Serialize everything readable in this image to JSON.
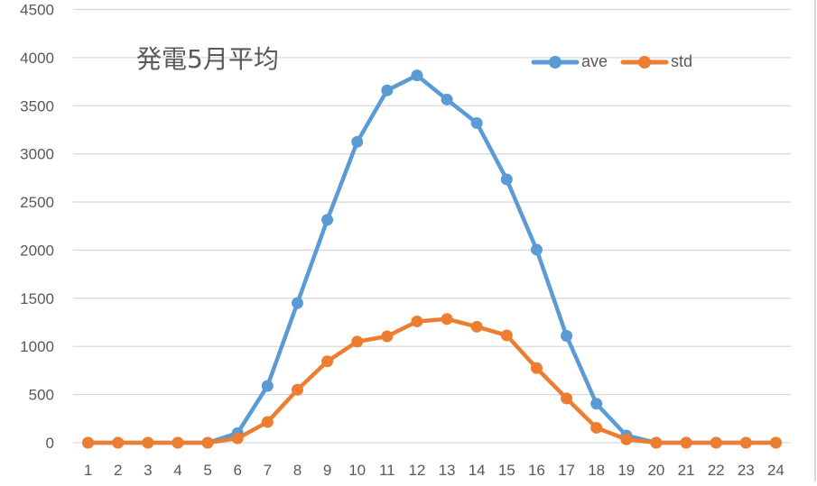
{
  "chart_data": {
    "type": "line",
    "title": "発電5月平均",
    "xlabel": "",
    "ylabel": "",
    "categories": [
      "1",
      "2",
      "3",
      "4",
      "5",
      "6",
      "7",
      "8",
      "9",
      "10",
      "11",
      "12",
      "13",
      "14",
      "15",
      "16",
      "17",
      "18",
      "19",
      "20",
      "21",
      "22",
      "23",
      "24"
    ],
    "series": [
      {
        "name": "ave",
        "color": "#5b9bd5",
        "values": [
          0,
          0,
          0,
          0,
          0,
          100,
          590,
          1450,
          2315,
          3125,
          3660,
          3815,
          3565,
          3320,
          2735,
          2005,
          1110,
          405,
          75,
          0,
          0,
          0,
          0,
          0
        ]
      },
      {
        "name": "std",
        "color": "#ed7d31",
        "values": [
          0,
          0,
          0,
          0,
          0,
          45,
          215,
          550,
          845,
          1050,
          1105,
          1260,
          1285,
          1205,
          1115,
          775,
          460,
          155,
          35,
          0,
          0,
          0,
          0,
          0
        ]
      }
    ],
    "ylim": [
      0,
      4500
    ],
    "yticks": [
      0,
      500,
      1000,
      1500,
      2000,
      2500,
      3000,
      3500,
      4000,
      4500
    ],
    "grid": true,
    "legend_position": "top-right",
    "markers": true
  },
  "colors": {
    "gridline": "#d9d9d9",
    "axis_text": "#595959",
    "title_text": "#595959"
  }
}
